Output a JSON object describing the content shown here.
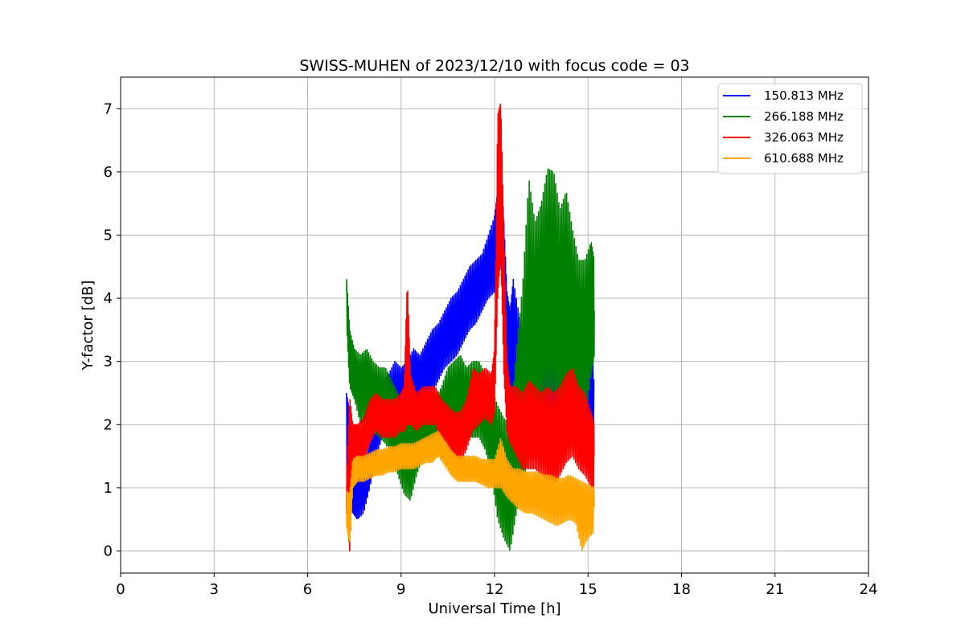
{
  "chart_data": {
    "type": "line",
    "title": "SWISS-MUHEN of 2023/12/10 with focus code = 03",
    "xlabel": "Universal Time [h]",
    "ylabel": "Y-factor [dB]",
    "xlim": [
      0,
      24
    ],
    "ylim": [
      -0.35,
      7.5
    ],
    "xticks": [
      0,
      3,
      6,
      9,
      12,
      15,
      18,
      21,
      24
    ],
    "yticks": [
      0,
      1,
      2,
      3,
      4,
      5,
      6,
      7
    ],
    "grid": true,
    "legend_position": "upper right",
    "series": [
      {
        "name": "150.813 MHz",
        "color": "#0000ff",
        "x": [
          7.25,
          7.35,
          7.45,
          7.6,
          7.8,
          8.0,
          8.2,
          8.4,
          8.6,
          8.8,
          9.0,
          9.2,
          9.4,
          9.6,
          9.8,
          10.0,
          10.2,
          10.4,
          10.6,
          10.8,
          11.0,
          11.2,
          11.4,
          11.6,
          11.8,
          12.0,
          12.1,
          12.2,
          12.3,
          12.4,
          12.5,
          12.6,
          12.8,
          13.0,
          13.2,
          13.4,
          13.6,
          13.8,
          14.0,
          14.2,
          14.4,
          14.6,
          14.8,
          15.0,
          15.2
        ],
        "y": [
          2.3,
          1.5,
          1.4,
          1.1,
          0.9,
          1.3,
          1.8,
          2.1,
          2.3,
          2.4,
          2.5,
          2.6,
          2.8,
          2.7,
          2.9,
          3.0,
          3.2,
          3.4,
          3.5,
          3.6,
          3.8,
          4.0,
          4.1,
          4.3,
          4.5,
          4.7,
          5.0,
          5.6,
          4.5,
          3.5,
          3.0,
          3.2,
          2.8,
          2.5,
          2.4,
          2.5,
          2.7,
          2.6,
          2.7,
          2.8,
          2.6,
          2.6,
          2.7,
          2.8,
          2.7
        ],
        "y_min": [
          1.2,
          0.7,
          0.6,
          0.5,
          0.6,
          1.0,
          1.5,
          1.8,
          2.0,
          2.1,
          2.2,
          2.2,
          2.3,
          2.2,
          2.4,
          2.5,
          2.7,
          2.9,
          3.0,
          3.1,
          3.3,
          3.5,
          3.6,
          3.8,
          4.0,
          4.1,
          4.2,
          4.6,
          3.5,
          2.7,
          2.3,
          2.4,
          2.0,
          1.7,
          1.7,
          1.8,
          1.9,
          1.9,
          1.9,
          1.9,
          1.8,
          1.8,
          1.8,
          1.8,
          1.9
        ],
        "y_max": [
          2.5,
          2.2,
          2.0,
          1.6,
          1.3,
          1.8,
          2.3,
          2.6,
          2.8,
          3.0,
          2.9,
          3.0,
          3.2,
          3.1,
          3.3,
          3.5,
          3.6,
          3.8,
          4.0,
          4.1,
          4.3,
          4.5,
          4.6,
          4.7,
          5.0,
          5.3,
          5.7,
          6.2,
          5.2,
          4.1,
          3.8,
          4.3,
          3.7,
          3.4,
          3.3,
          3.2,
          3.6,
          3.4,
          3.6,
          3.9,
          3.5,
          3.6,
          3.5,
          3.6,
          3.5
        ]
      },
      {
        "name": "266.188 MHz",
        "color": "#008000",
        "x": [
          7.25,
          7.35,
          7.5,
          7.7,
          7.9,
          8.1,
          8.3,
          8.5,
          8.7,
          8.9,
          9.1,
          9.3,
          9.5,
          9.7,
          9.9,
          10.1,
          10.3,
          10.5,
          10.7,
          10.9,
          11.1,
          11.3,
          11.5,
          11.7,
          11.9,
          12.1,
          12.3,
          12.5,
          12.7,
          12.9,
          13.1,
          13.3,
          13.5,
          13.7,
          13.9,
          14.1,
          14.3,
          14.5,
          14.7,
          14.9,
          15.1,
          15.2
        ],
        "y": [
          4.1,
          3.0,
          2.8,
          2.6,
          2.7,
          2.5,
          2.4,
          2.3,
          2.1,
          1.8,
          1.6,
          1.5,
          1.7,
          1.9,
          2.0,
          1.9,
          2.0,
          2.3,
          2.4,
          2.4,
          2.3,
          2.3,
          2.4,
          2.2,
          1.9,
          1.4,
          1.0,
          0.9,
          1.5,
          2.1,
          2.8,
          3.5,
          3.7,
          3.9,
          4.0,
          3.8,
          3.9,
          3.6,
          3.2,
          3.4,
          4.0,
          3.8
        ],
        "y_min": [
          3.6,
          2.6,
          2.4,
          2.0,
          2.1,
          1.9,
          1.8,
          1.7,
          1.5,
          1.2,
          0.9,
          0.8,
          1.2,
          1.5,
          1.6,
          1.5,
          1.6,
          1.9,
          2.0,
          2.0,
          1.8,
          1.8,
          1.8,
          1.6,
          1.2,
          0.5,
          0.2,
          0.0,
          0.6,
          1.0,
          1.5,
          2.0,
          2.3,
          2.5,
          2.5,
          2.3,
          2.4,
          2.2,
          1.8,
          2.0,
          2.8,
          3.1
        ],
        "y_max": [
          4.35,
          3.5,
          3.2,
          3.1,
          3.2,
          3.0,
          2.9,
          2.9,
          2.7,
          2.5,
          2.2,
          2.2,
          2.3,
          2.5,
          2.5,
          2.4,
          2.6,
          2.9,
          3.0,
          3.1,
          2.9,
          3.0,
          3.0,
          2.8,
          2.6,
          2.3,
          2.1,
          2.0,
          3.2,
          4.2,
          5.9,
          5.2,
          5.5,
          6.05,
          6.0,
          5.4,
          5.7,
          5.1,
          4.6,
          4.6,
          4.9,
          4.6
        ]
      },
      {
        "name": "326.063 MHz",
        "color": "#ff0000",
        "x": [
          7.25,
          7.35,
          7.45,
          7.6,
          7.8,
          8.0,
          8.2,
          8.4,
          8.6,
          8.8,
          9.0,
          9.1,
          9.2,
          9.3,
          9.5,
          9.7,
          9.9,
          10.1,
          10.3,
          10.5,
          10.7,
          10.9,
          11.1,
          11.3,
          11.5,
          11.7,
          11.9,
          12.0,
          12.1,
          12.2,
          12.3,
          12.4,
          12.5,
          12.7,
          12.9,
          13.1,
          13.3,
          13.5,
          13.7,
          13.9,
          14.1,
          14.3,
          14.5,
          14.7,
          14.9,
          15.1,
          15.2
        ],
        "y": [
          1.0,
          0.3,
          1.6,
          1.7,
          1.7,
          2.0,
          2.2,
          2.1,
          2.1,
          2.1,
          2.2,
          2.2,
          3.9,
          2.3,
          2.2,
          2.3,
          2.3,
          2.3,
          2.1,
          2.0,
          1.8,
          1.8,
          2.0,
          2.3,
          2.4,
          2.5,
          2.4,
          2.7,
          5.2,
          6.5,
          3.8,
          2.4,
          2.1,
          2.0,
          1.8,
          1.9,
          1.9,
          1.8,
          1.8,
          1.7,
          1.8,
          2.0,
          2.1,
          1.8,
          1.7,
          1.6,
          1.5
        ],
        "y_min": [
          0.6,
          0.0,
          1.3,
          1.4,
          1.4,
          1.7,
          1.9,
          1.8,
          1.8,
          1.8,
          1.9,
          1.9,
          2.0,
          2.0,
          1.9,
          2.0,
          2.0,
          2.0,
          1.7,
          1.6,
          1.4,
          1.4,
          1.6,
          1.9,
          2.0,
          2.1,
          2.0,
          2.2,
          4.0,
          4.7,
          2.8,
          1.9,
          1.7,
          1.5,
          1.3,
          1.3,
          1.3,
          1.2,
          1.1,
          1.0,
          1.2,
          1.4,
          1.5,
          1.3,
          1.2,
          1.0,
          1.0
        ],
        "y_max": [
          1.2,
          2.45,
          2.0,
          2.0,
          2.1,
          2.4,
          2.5,
          2.4,
          2.4,
          2.4,
          2.5,
          2.6,
          4.3,
          2.8,
          2.5,
          2.6,
          2.6,
          2.6,
          2.4,
          2.3,
          2.2,
          2.2,
          2.4,
          2.9,
          2.8,
          2.9,
          2.8,
          3.2,
          6.9,
          7.1,
          5.0,
          3.0,
          2.6,
          2.6,
          2.5,
          2.7,
          2.6,
          2.5,
          2.6,
          2.5,
          2.6,
          2.8,
          2.9,
          2.6,
          2.5,
          2.2,
          2.0
        ]
      },
      {
        "name": "610.688 MHz",
        "color": "#ffa500",
        "x": [
          7.25,
          7.35,
          7.45,
          7.6,
          7.8,
          8.0,
          8.2,
          8.4,
          8.6,
          8.8,
          9.0,
          9.2,
          9.4,
          9.6,
          9.8,
          10.0,
          10.2,
          10.4,
          10.6,
          10.8,
          11.0,
          11.2,
          11.4,
          11.6,
          11.8,
          12.0,
          12.2,
          12.4,
          12.6,
          12.8,
          13.0,
          13.2,
          13.4,
          13.6,
          13.8,
          14.0,
          14.2,
          14.4,
          14.6,
          14.8,
          15.0,
          15.2
        ],
        "y": [
          0.7,
          0.4,
          1.2,
          1.3,
          1.3,
          1.35,
          1.4,
          1.4,
          1.45,
          1.45,
          1.5,
          1.5,
          1.5,
          1.55,
          1.6,
          1.6,
          1.7,
          1.55,
          1.4,
          1.3,
          1.3,
          1.3,
          1.3,
          1.25,
          1.2,
          1.2,
          1.3,
          1.15,
          1.05,
          1.0,
          0.95,
          0.95,
          0.95,
          0.9,
          0.9,
          0.85,
          0.85,
          0.9,
          0.85,
          0.8,
          0.75,
          0.7
        ],
        "y_min": [
          0.4,
          0.1,
          1.0,
          1.1,
          1.1,
          1.15,
          1.2,
          1.2,
          1.25,
          1.25,
          1.3,
          1.3,
          1.3,
          1.35,
          1.4,
          1.4,
          1.5,
          1.35,
          1.2,
          1.1,
          1.1,
          1.1,
          1.1,
          1.05,
          1.0,
          1.0,
          1.0,
          0.85,
          0.75,
          0.65,
          0.6,
          0.6,
          0.55,
          0.5,
          0.45,
          0.4,
          0.45,
          0.5,
          0.45,
          0.0,
          0.2,
          0.3
        ],
        "y_max": [
          0.95,
          0.9,
          1.45,
          1.5,
          1.5,
          1.55,
          1.6,
          1.6,
          1.65,
          1.65,
          1.7,
          1.7,
          1.7,
          1.75,
          1.8,
          1.85,
          1.9,
          1.75,
          1.6,
          1.5,
          1.5,
          1.5,
          1.5,
          1.45,
          1.45,
          1.45,
          1.8,
          1.45,
          1.3,
          1.3,
          1.25,
          1.25,
          1.25,
          1.2,
          1.2,
          1.15,
          1.15,
          1.2,
          1.15,
          1.1,
          1.05,
          1.0
        ]
      }
    ]
  }
}
